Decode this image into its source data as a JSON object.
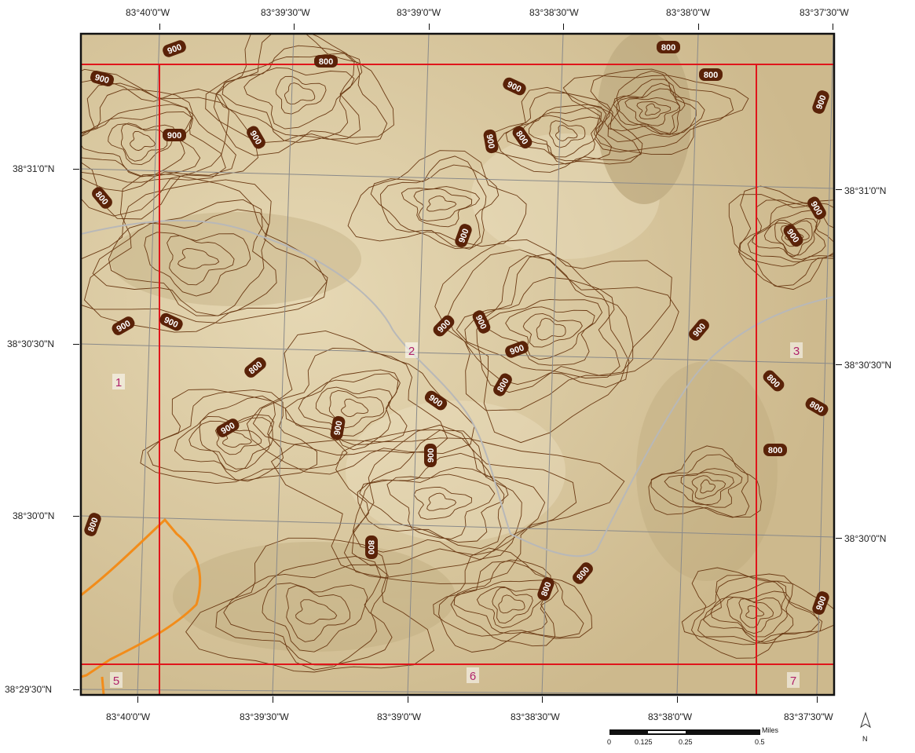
{
  "top_longitudes": [
    "83°40'0\"W",
    "83°39'30\"W",
    "83°39'0\"W",
    "83°38'30\"W",
    "83°38'0\"W",
    "83°37'30\"W"
  ],
  "bottom_longitudes": [
    "83°40'0\"W",
    "83°39'30\"W",
    "83°39'0\"W",
    "83°38'30\"W",
    "83°38'0\"W",
    "83°37'30\"W"
  ],
  "left_latitudes": [
    "38°31'0\"N",
    "38°30'30\"N",
    "38°30'0\"N",
    "38°29'30\"N"
  ],
  "right_latitudes": [
    "38°31'0\"N",
    "38°30'30\"N",
    "38°30'0\"N"
  ],
  "quad_labels": [
    "1",
    "2",
    "3",
    "5",
    "6",
    "7"
  ],
  "contour_labels": [
    "900",
    "800",
    "900",
    "800",
    "800",
    "900",
    "900",
    "900",
    "900",
    "800",
    "900",
    "800",
    "900",
    "900",
    "900",
    "900",
    "900",
    "800",
    "900",
    "900",
    "900",
    "900",
    "800",
    "900",
    "800",
    "800",
    "800",
    "900",
    "900",
    "900",
    "800",
    "800",
    "800",
    "800",
    "900"
  ],
  "scale_bar": {
    "unit": "Miles",
    "ticks": [
      "0",
      "0.125",
      "0.25",
      "0.5"
    ]
  },
  "north_arrow": "N",
  "colors": {
    "terrain": "#d8c7a0",
    "contour": "#6b3a14",
    "grid": "#8a8a8a",
    "quad_boundary": "#e0151b",
    "road": "#b8b8b8",
    "boundary": "#f28c1a",
    "label_bg": "#5a2208"
  }
}
